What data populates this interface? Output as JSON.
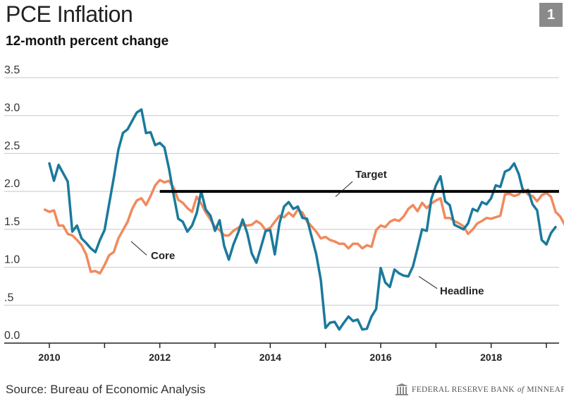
{
  "title": "PCE Inflation",
  "subtitle": "12-month percent change",
  "badge": "1",
  "source": "Source: Bureau of Economic Analysis",
  "footer_org": {
    "part1": "FEDERAL RESERVE BANK",
    "of": "of",
    "part2": "MINNEAPOLIS"
  },
  "chart_data": {
    "type": "line",
    "title": "PCE Inflation",
    "subtitle": "12-month percent change",
    "xlabel": "",
    "ylabel": "",
    "xlim": [
      2009.917,
      2019.333
    ],
    "ylim": [
      0,
      3.5
    ],
    "x_ticks": [
      2010,
      2011,
      2012,
      2013,
      2014,
      2015,
      2016,
      2017,
      2018,
      2019
    ],
    "x_tick_labels": [
      {
        "value": 2010,
        "label": "2010"
      },
      {
        "value": 2012,
        "label": "2012"
      },
      {
        "value": 2014,
        "label": "2014"
      },
      {
        "value": 2016,
        "label": "2016"
      },
      {
        "value": 2018,
        "label": "2018"
      }
    ],
    "y_tick_labels": [
      {
        "value": 0,
        "label": "0.0"
      },
      {
        "value": 0.5,
        "label": ".5"
      },
      {
        "value": 1.0,
        "label": "1.0"
      },
      {
        "value": 1.5,
        "label": "1.5"
      },
      {
        "value": 2.0,
        "label": "2.0"
      },
      {
        "value": 2.5,
        "label": "2.5"
      },
      {
        "value": 3.0,
        "label": "3.0"
      },
      {
        "value": 3.5,
        "label": "3.5"
      }
    ],
    "grid": "horizontal",
    "colors": {
      "headline": "#1a7a9c",
      "core": "#f08a5d",
      "target": "#000000"
    },
    "target": {
      "name": "Target",
      "value": 2.0,
      "x_start": 2012.0,
      "x_end": 2019.333
    },
    "labels": {
      "target": {
        "text": "Target",
        "x": 2013.6,
        "y": 2.18
      },
      "core": {
        "text": "Core",
        "x": 2011.7,
        "y": 1.13
      },
      "headline": {
        "text": "Headline",
        "x": 2017.5,
        "y": 0.6
      }
    },
    "series": [
      {
        "name": "Headline",
        "x_start": 2010.0,
        "step": 0.08333,
        "values": [
          2.37,
          2.14,
          2.35,
          2.24,
          2.13,
          1.47,
          1.55,
          1.38,
          1.32,
          1.25,
          1.2,
          1.36,
          1.49,
          1.84,
          2.18,
          2.55,
          2.77,
          2.82,
          2.93,
          3.04,
          3.08,
          2.77,
          2.78,
          2.61,
          2.64,
          2.58,
          2.3,
          1.96,
          1.64,
          1.6,
          1.47,
          1.55,
          1.71,
          2.0,
          1.76,
          1.68,
          1.48,
          1.62,
          1.28,
          1.1,
          1.3,
          1.45,
          1.63,
          1.45,
          1.18,
          1.06,
          1.27,
          1.48,
          1.49,
          1.17,
          1.58,
          1.8,
          1.86,
          1.77,
          1.8,
          1.65,
          1.64,
          1.4,
          1.17,
          0.83,
          0.2,
          0.27,
          0.28,
          0.18,
          0.27,
          0.35,
          0.29,
          0.31,
          0.18,
          0.19,
          0.35,
          0.45,
          0.99,
          0.8,
          0.74,
          0.97,
          0.92,
          0.89,
          0.88,
          1.01,
          1.25,
          1.5,
          1.48,
          1.9,
          2.08,
          2.2,
          1.87,
          1.82,
          1.56,
          1.53,
          1.5,
          1.58,
          1.77,
          1.74,
          1.86,
          1.83,
          1.91,
          2.08,
          2.06,
          2.26,
          2.29,
          2.37,
          2.23,
          1.99,
          2.02,
          1.83,
          1.75,
          1.36,
          1.3,
          1.45,
          1.53
        ]
      },
      {
        "name": "Core",
        "x_start": 2009.917,
        "step": 0.08333,
        "values": [
          1.76,
          1.73,
          1.75,
          1.55,
          1.55,
          1.44,
          1.42,
          1.36,
          1.29,
          1.17,
          0.94,
          0.95,
          0.92,
          1.03,
          1.16,
          1.2,
          1.38,
          1.49,
          1.6,
          1.77,
          1.88,
          1.91,
          1.82,
          1.94,
          2.08,
          2.15,
          2.12,
          2.14,
          2.05,
          1.89,
          1.85,
          1.78,
          1.73,
          1.93,
          1.84,
          1.72,
          1.63,
          1.53,
          1.49,
          1.42,
          1.42,
          1.48,
          1.52,
          1.56,
          1.55,
          1.56,
          1.61,
          1.57,
          1.49,
          1.52,
          1.6,
          1.68,
          1.66,
          1.72,
          1.67,
          1.76,
          1.72,
          1.6,
          1.54,
          1.47,
          1.38,
          1.4,
          1.36,
          1.34,
          1.31,
          1.31,
          1.25,
          1.31,
          1.31,
          1.25,
          1.29,
          1.27,
          1.49,
          1.55,
          1.53,
          1.6,
          1.63,
          1.61,
          1.67,
          1.77,
          1.82,
          1.74,
          1.85,
          1.78,
          1.84,
          1.88,
          1.91,
          1.65,
          1.65,
          1.61,
          1.58,
          1.54,
          1.44,
          1.5,
          1.58,
          1.61,
          1.65,
          1.64,
          1.66,
          1.68,
          1.96,
          1.97,
          1.94,
          1.96,
          2.03,
          1.96,
          1.94,
          1.87,
          1.95,
          1.98,
          1.93,
          1.73,
          1.67,
          1.56,
          1.58
        ]
      }
    ]
  }
}
